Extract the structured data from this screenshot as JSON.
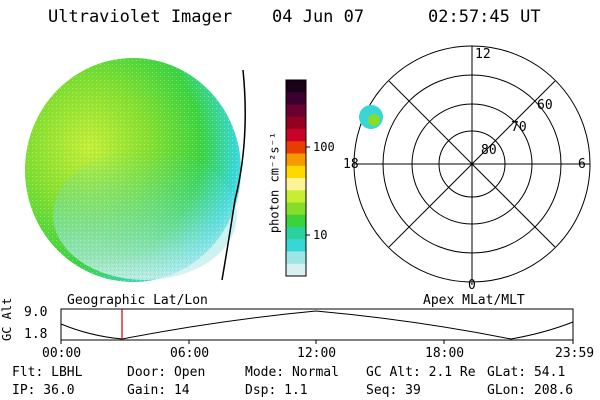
{
  "header": {
    "title": "Ultraviolet Imager",
    "date": "04 Jun 07",
    "time": "02:57:45 UT"
  },
  "colorbar": {
    "label": "photon cm⁻²s⁻¹",
    "ticks": [
      "100",
      "10"
    ],
    "colors": [
      "#1a0018",
      "#3c0030",
      "#6a0030",
      "#960020",
      "#c8002a",
      "#e83c00",
      "#f59a00",
      "#ffd800",
      "#fff39a",
      "#c8ee32",
      "#86de2a",
      "#3cd23c",
      "#2ad2a0",
      "#38d6d6",
      "#9ee6e6",
      "#d8f0f0"
    ]
  },
  "polar": {
    "lat_labels": [
      "80",
      "70",
      "60"
    ],
    "mlt_labels": {
      "top": "12",
      "bottom": "0",
      "left": "18",
      "right": "6"
    }
  },
  "timeline": {
    "left_label": "Geographic Lat/Lon",
    "right_label": "Apex MLat/MLT",
    "y_axis_label": "GC Alt",
    "y_ticks": [
      "9.0",
      "1.8"
    ],
    "x_ticks": [
      "00:00",
      "06:00",
      "12:00",
      "18:00",
      "23:59"
    ],
    "marker_color": "#cc0000"
  },
  "status": {
    "filter": "Flt: LBHL",
    "ip": "IP: 36.0",
    "door": "Door: Open",
    "gain": "Gain: 14",
    "mode": "Mode: Normal",
    "dsp": "Dsp:   1.1",
    "gc_alt": "GC Alt: 2.1 Re",
    "seq": "Seq: 39",
    "glat": "GLat:  54.1",
    "glon": "GLon: 208.6"
  }
}
